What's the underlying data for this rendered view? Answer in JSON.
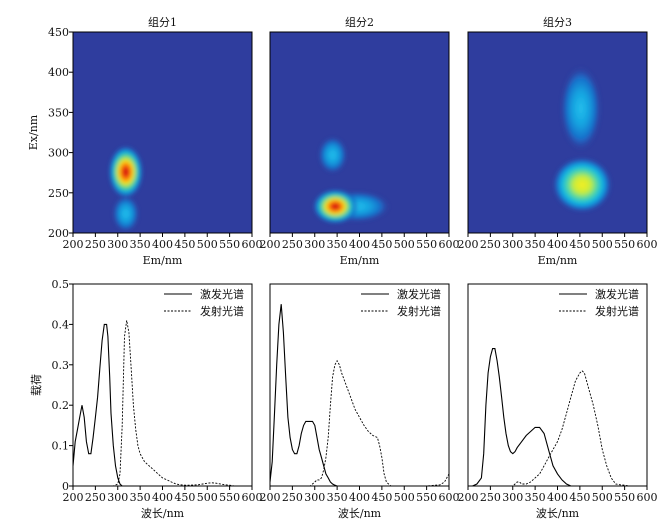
{
  "chart_data": [
    {
      "type": "heatmap",
      "title": "组分1",
      "xlabel": "Em/nm",
      "ylabel": "Ex/nm",
      "xlim": [
        200,
        600
      ],
      "ylim": [
        200,
        450
      ],
      "xticks": [
        "200",
        "250",
        "300",
        "350",
        "400",
        "450",
        "500",
        "550",
        "600"
      ],
      "yticks": [
        "200",
        "250",
        "300",
        "350",
        "400",
        "450"
      ],
      "peaks": [
        {
          "em": 318,
          "ex": 276,
          "intensity": 1.0
        },
        {
          "em": 318,
          "ex": 224,
          "intensity": 0.55
        }
      ]
    },
    {
      "type": "heatmap",
      "title": "组分2",
      "xlabel": "Em/nm",
      "xlim": [
        200,
        600
      ],
      "ylim": [
        200,
        450
      ],
      "xticks": [
        "200",
        "250",
        "300",
        "350",
        "400",
        "450",
        "500",
        "550",
        "600"
      ],
      "peaks": [
        {
          "em": 346,
          "ex": 233,
          "intensity": 1.0
        },
        {
          "em": 340,
          "ex": 297,
          "intensity": 0.45
        }
      ]
    },
    {
      "type": "heatmap",
      "title": "组分3",
      "xlabel": "Em/nm",
      "xlim": [
        200,
        600
      ],
      "ylim": [
        200,
        450
      ],
      "xticks": [
        "200",
        "250",
        "300",
        "350",
        "400",
        "450",
        "500",
        "550",
        "600"
      ],
      "peaks": [
        {
          "em": 455,
          "ex": 260,
          "intensity": 1.0
        },
        {
          "em": 452,
          "ex": 355,
          "intensity": 0.5
        }
      ]
    },
    {
      "type": "line",
      "xlabel": "波长/nm",
      "ylabel": "载荷",
      "xlim": [
        200,
        600
      ],
      "ylim": [
        0,
        0.5
      ],
      "xticks": [
        "200",
        "250",
        "300",
        "350",
        "400",
        "450",
        "500",
        "550",
        "600"
      ],
      "yticks": [
        "0",
        "0.1",
        "0.2",
        "0.3",
        "0.4",
        "0.5"
      ],
      "series": [
        {
          "name": "激发光谱",
          "style": "solid",
          "x": [
            200,
            205,
            210,
            215,
            220,
            225,
            230,
            235,
            240,
            245,
            250,
            255,
            260,
            265,
            270,
            275,
            278,
            282,
            285,
            290,
            295,
            300,
            305,
            310
          ],
          "y": [
            0.05,
            0.11,
            0.14,
            0.17,
            0.2,
            0.17,
            0.11,
            0.08,
            0.08,
            0.12,
            0.17,
            0.22,
            0.29,
            0.36,
            0.4,
            0.4,
            0.37,
            0.27,
            0.18,
            0.1,
            0.05,
            0.02,
            0.005,
            0
          ]
        },
        {
          "name": "发射光谱",
          "style": "dashed",
          "x": [
            280,
            290,
            300,
            305,
            310,
            315,
            320,
            325,
            330,
            335,
            340,
            345,
            350,
            360,
            370,
            380,
            390,
            400,
            410,
            420,
            430,
            440,
            450,
            460,
            480,
            500,
            510,
            520,
            540,
            550,
            560
          ],
          "y": [
            0,
            0,
            0.005,
            0.03,
            0.15,
            0.37,
            0.41,
            0.38,
            0.29,
            0.2,
            0.14,
            0.1,
            0.08,
            0.06,
            0.05,
            0.04,
            0.03,
            0.02,
            0.015,
            0.01,
            0.005,
            0.003,
            0.002,
            0.002,
            0.003,
            0.007,
            0.008,
            0.007,
            0.003,
            0.002,
            0
          ]
        }
      ],
      "legend": "top-right"
    },
    {
      "type": "line",
      "xlabel": "波长/nm",
      "xlim": [
        200,
        600
      ],
      "ylim": [
        0,
        0.5
      ],
      "xticks": [
        "200",
        "250",
        "300",
        "350",
        "400",
        "450",
        "500",
        "550",
        "600"
      ],
      "series": [
        {
          "name": "激发光谱",
          "style": "solid",
          "x": [
            200,
            205,
            210,
            215,
            220,
            225,
            230,
            235,
            240,
            245,
            250,
            255,
            260,
            265,
            270,
            275,
            280,
            285,
            290,
            295,
            300,
            305,
            310,
            315,
            320,
            325,
            330,
            335,
            340,
            345,
            350
          ],
          "y": [
            0.01,
            0.06,
            0.18,
            0.3,
            0.4,
            0.45,
            0.38,
            0.27,
            0.17,
            0.12,
            0.09,
            0.08,
            0.08,
            0.1,
            0.13,
            0.15,
            0.16,
            0.16,
            0.16,
            0.16,
            0.15,
            0.12,
            0.09,
            0.07,
            0.05,
            0.03,
            0.02,
            0.01,
            0.005,
            0.002,
            0
          ]
        },
        {
          "name": "发射光谱",
          "style": "dashed",
          "x": [
            280,
            290,
            295,
            300,
            305,
            310,
            315,
            320,
            325,
            330,
            335,
            340,
            345,
            350,
            355,
            360,
            370,
            380,
            390,
            400,
            410,
            420,
            430,
            440,
            445,
            450,
            455,
            460,
            470,
            480,
            500,
            550,
            580,
            590,
            600
          ],
          "y": [
            0,
            0,
            0.005,
            0.01,
            0.015,
            0.015,
            0.02,
            0.04,
            0.07,
            0.12,
            0.2,
            0.27,
            0.3,
            0.31,
            0.3,
            0.28,
            0.25,
            0.22,
            0.19,
            0.17,
            0.15,
            0.135,
            0.125,
            0.12,
            0.1,
            0.07,
            0.03,
            0.01,
            0,
            0,
            0,
            0,
            0.003,
            0.01,
            0.03
          ]
        }
      ],
      "legend": "top-right"
    },
    {
      "type": "line",
      "xlabel": "波长/nm",
      "xlim": [
        200,
        600
      ],
      "ylim": [
        0,
        0.5
      ],
      "xticks": [
        "200",
        "250",
        "300",
        "350",
        "400",
        "450",
        "500",
        "550",
        "600"
      ],
      "series": [
        {
          "name": "激发光谱",
          "style": "solid",
          "x": [
            200,
            210,
            220,
            230,
            235,
            240,
            245,
            250,
            255,
            260,
            265,
            270,
            275,
            280,
            285,
            290,
            295,
            300,
            305,
            310,
            320,
            330,
            340,
            350,
            360,
            370,
            380,
            390,
            400,
            410,
            420,
            430
          ],
          "y": [
            0,
            0,
            0.005,
            0.02,
            0.08,
            0.2,
            0.28,
            0.32,
            0.34,
            0.34,
            0.31,
            0.27,
            0.22,
            0.17,
            0.13,
            0.1,
            0.085,
            0.08,
            0.085,
            0.095,
            0.11,
            0.125,
            0.135,
            0.145,
            0.145,
            0.13,
            0.09,
            0.05,
            0.03,
            0.015,
            0.005,
            0
          ]
        },
        {
          "name": "发射光谱",
          "style": "dashed",
          "x": [
            280,
            300,
            305,
            310,
            315,
            320,
            330,
            340,
            350,
            360,
            370,
            380,
            390,
            400,
            410,
            420,
            430,
            440,
            450,
            455,
            460,
            465,
            470,
            480,
            490,
            500,
            510,
            520,
            530,
            540,
            550,
            560
          ],
          "y": [
            0,
            0,
            0.005,
            0.01,
            0.01,
            0.005,
            0.005,
            0.01,
            0.02,
            0.03,
            0.05,
            0.07,
            0.09,
            0.11,
            0.14,
            0.18,
            0.22,
            0.26,
            0.28,
            0.285,
            0.28,
            0.26,
            0.24,
            0.2,
            0.15,
            0.09,
            0.05,
            0.02,
            0.005,
            0.003,
            0.002,
            0
          ]
        }
      ],
      "legend": "top-right"
    }
  ]
}
